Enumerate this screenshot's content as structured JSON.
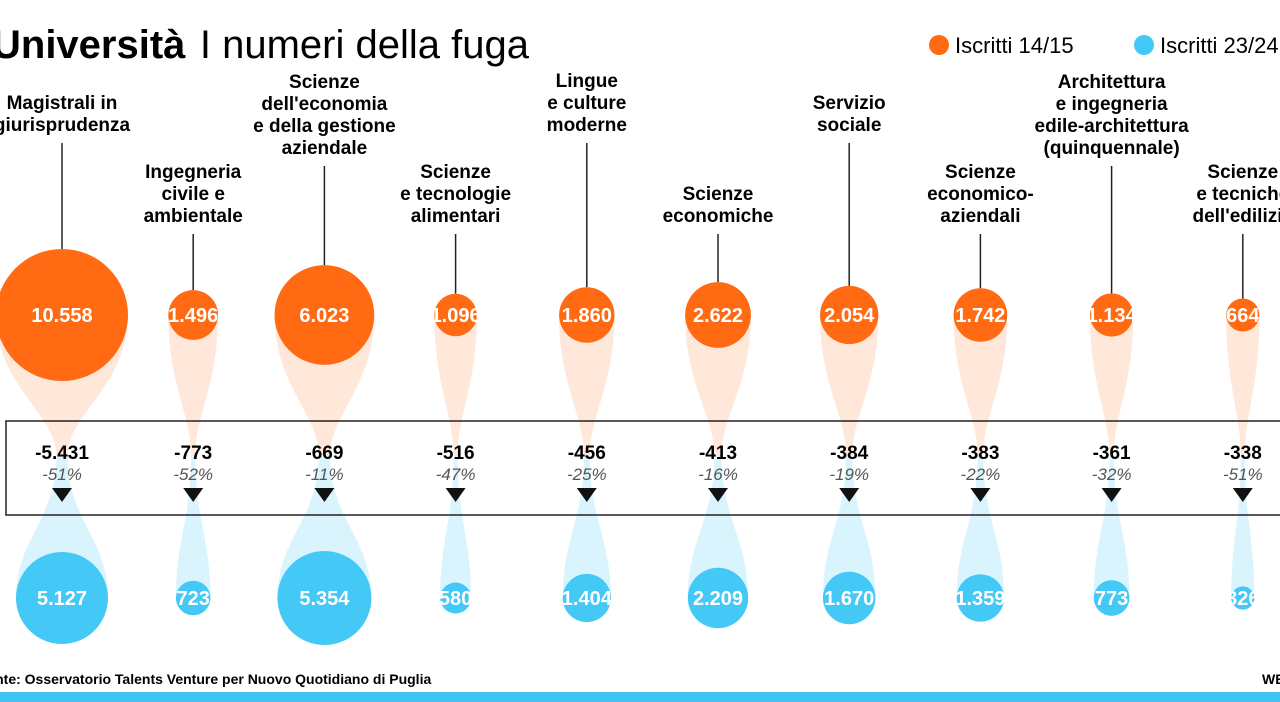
{
  "title": "Università",
  "subtitle": "I numeri della fuga",
  "source": "Fonte: Osservatorio Talents Venture per Nuovo Quotidiano di Puglia",
  "brand": "WEB",
  "colors": {
    "old": "#ff6a13",
    "new": "#44c8f5",
    "band": "#3fc3f0"
  },
  "chart_data": {
    "type": "bubble",
    "series": [
      {
        "name": "Iscritti 14/15",
        "values": [
          10558,
          1496,
          6023,
          1096,
          1860,
          2622,
          2054,
          1742,
          1134,
          664
        ]
      },
      {
        "name": "Iscritti 23/24",
        "values": [
          5127,
          723,
          5354,
          580,
          1404,
          2209,
          1670,
          1359,
          773,
          326
        ]
      }
    ],
    "items": [
      {
        "label": [
          "Magistrali in",
          "giurisprudenza"
        ],
        "old": 10558,
        "new": 5127,
        "old_text": "10.558",
        "new_text": "5.127",
        "diff_text": "-5.431",
        "pct_text": "-51%"
      },
      {
        "label": [
          "Ingegneria",
          "civile e",
          "ambientale"
        ],
        "old": 1496,
        "new": 723,
        "old_text": "1.496",
        "new_text": "723",
        "diff_text": "-773",
        "pct_text": "-52%"
      },
      {
        "label": [
          "Scienze",
          "dell'economia",
          "e della gestione",
          "aziendale"
        ],
        "old": 6023,
        "new": 5354,
        "old_text": "6.023",
        "new_text": "5.354",
        "diff_text": "-669",
        "pct_text": "-11%"
      },
      {
        "label": [
          "Scienze",
          "e tecnologie",
          "alimentari"
        ],
        "old": 1096,
        "new": 580,
        "old_text": "1.096",
        "new_text": "580",
        "diff_text": "-516",
        "pct_text": "-47%"
      },
      {
        "label": [
          "Lingue",
          "e culture",
          "moderne"
        ],
        "old": 1860,
        "new": 1404,
        "old_text": "1.860",
        "new_text": "1.404",
        "diff_text": "-456",
        "pct_text": "-25%"
      },
      {
        "label": [
          "Scienze",
          "economiche"
        ],
        "old": 2622,
        "new": 2209,
        "old_text": "2.622",
        "new_text": "2.209",
        "diff_text": "-413",
        "pct_text": "-16%"
      },
      {
        "label": [
          "Servizio",
          "sociale"
        ],
        "old": 2054,
        "new": 1670,
        "old_text": "2.054",
        "new_text": "1.670",
        "diff_text": "-384",
        "pct_text": "-19%"
      },
      {
        "label": [
          "Scienze",
          "economico-",
          "aziendali"
        ],
        "old": 1742,
        "new": 1359,
        "old_text": "1.742",
        "new_text": "1.359",
        "diff_text": "-383",
        "pct_text": "-22%"
      },
      {
        "label": [
          "Architettura",
          "e ingegneria",
          "edile-architettura",
          "(quinquennale)"
        ],
        "old": 1134,
        "new": 773,
        "old_text": "1.134",
        "new_text": "773",
        "diff_text": "-361",
        "pct_text": "-32%"
      },
      {
        "label": [
          "Scienze",
          "e tecniche",
          "dell'edilizia"
        ],
        "old": 664,
        "new": 326,
        "old_text": "664",
        "new_text": "326",
        "diff_text": "-338",
        "pct_text": "-51%"
      }
    ]
  }
}
